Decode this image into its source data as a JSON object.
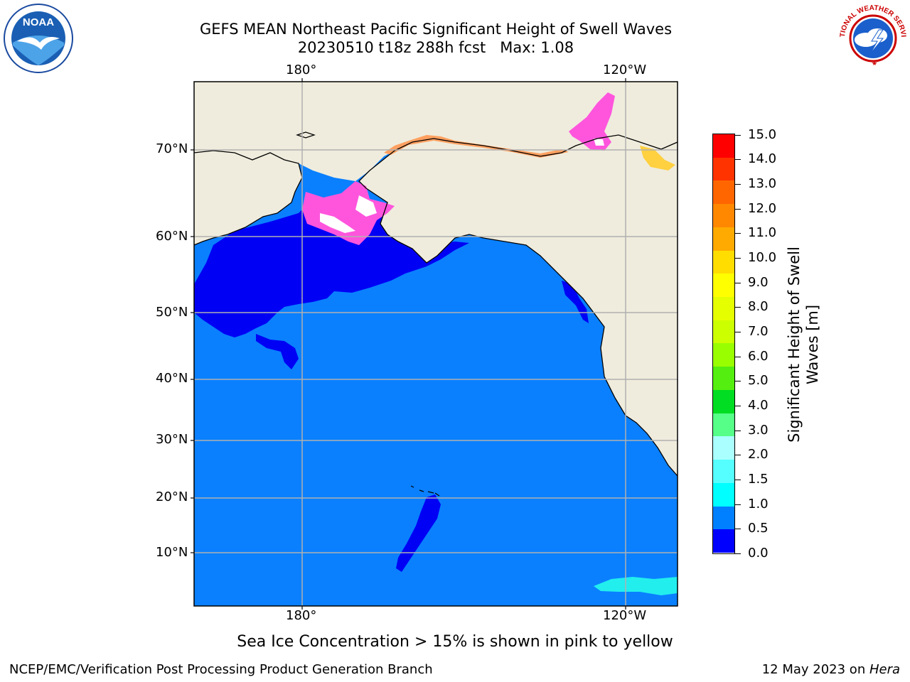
{
  "title": {
    "line1": "GEFS MEAN Northeast Pacific Significant Height of Swell Waves",
    "line2": "20230510 t18z 288h fcst   Max: 1.08"
  },
  "map": {
    "lon_labels": [
      "180°",
      "120°W"
    ],
    "lat_labels": [
      "70°N",
      "60°N",
      "50°N",
      "40°N",
      "30°N",
      "20°N",
      "10°N"
    ],
    "colors": {
      "ocean": "#0a80ff",
      "low_swell": "#0000f5",
      "land": "#efecdd",
      "coast": "#000000",
      "grid": "#b0b0b0",
      "ice_pink": "#ff55dd",
      "ice_orange": "#ffa060",
      "ice_yellow": "#ffd040",
      "cyan": "#22eeee"
    }
  },
  "colorbar": {
    "title": "Significant Height of Swell Waves [m]",
    "tick_labels": [
      "15.0",
      "14.0",
      "13.0",
      "12.0",
      "11.0",
      "10.0",
      "9.0",
      "8.0",
      "7.0",
      "6.0",
      "5.0",
      "4.0",
      "3.0",
      "2.0",
      "1.5",
      "1.0",
      "0.5",
      "0.0"
    ],
    "colors": [
      "#ff0000",
      "#ff3300",
      "#ff6600",
      "#ff8800",
      "#ffaa00",
      "#ffdd00",
      "#ffff00",
      "#e6ff00",
      "#ccff00",
      "#99ff00",
      "#55ee11",
      "#00dd22",
      "#55ff88",
      "#aaffff",
      "#55ffff",
      "#00ffff",
      "#0080ff",
      "#0000ff"
    ]
  },
  "bottom_note": "Sea Ice Concentration > 15% is shown in pink to yellow",
  "footer": {
    "left": "NCEP/EMC/Verification Post Processing Product Generation Branch",
    "right_prefix": "12 May 2023 on ",
    "right_host": "Hera"
  },
  "logos": {
    "noaa_text": "NOAA",
    "nws_text": "NATIONAL WEATHER SERVICE"
  }
}
